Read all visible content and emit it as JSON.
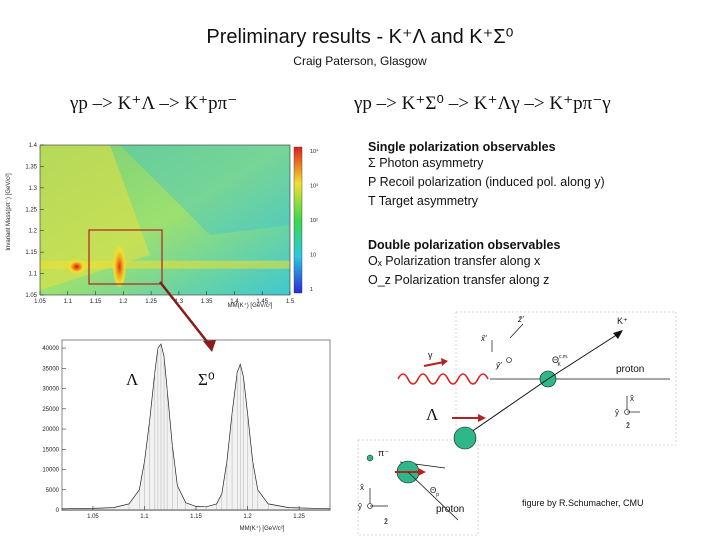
{
  "header": {
    "title": "Preliminary results - K⁺Λ and K⁺Σ⁰",
    "subtitle": "Craig Paterson, Glasgow"
  },
  "reactions": {
    "left": "γp –> K⁺Λ –> K⁺pπ⁻",
    "right": "γp –> K⁺Σ⁰ –> K⁺Λγ –> K⁺pπ⁻γ"
  },
  "single_polarization": {
    "title": "Single polarization observables",
    "items": [
      "Σ Photon asymmetry",
      "P Recoil polarization (induced pol. along y)",
      "T Target asymmetry"
    ]
  },
  "double_polarization": {
    "title": "Double polarization observables",
    "items": [
      "Oₓ Polarization transfer along x",
      "O_z Polarization transfer along z"
    ]
  },
  "diagram": {
    "labels": {
      "kplus": "K⁺",
      "lambda": "Λ",
      "piminus": "π⁻",
      "proton1": "proton",
      "proton2": "proton",
      "gamma": "γ",
      "theta_cm": "Θ",
      "theta_cm_sup": "c.m.",
      "theta_cm_sub": "K",
      "theta_p": "Θ",
      "theta_p_sub": "p",
      "xhat": "x̂",
      "yhat": "ŷ",
      "zhat": "ẑ",
      "xprime": "x̂′",
      "yprime": "ŷ′",
      "zprime": "ẑ′"
    },
    "credit": "figure by R.Schumacher, CMU"
  },
  "colors": {
    "arrow": "#8b1a1a",
    "box": "#b22222",
    "sphere": "#2eb88a",
    "wave": "#e02020"
  },
  "chart_data": [
    {
      "type": "heatmap",
      "title": "",
      "xlabel": "MM(K⁺) [GeV/c²]",
      "ylabel": "Invariant Mass(pπ⁻) [GeV/c²]",
      "x_ticks": [
        "1.05",
        "1.1",
        "1.15",
        "1.2",
        "1.25",
        "1.3",
        "1.35",
        "1.4",
        "1.45",
        "1.5"
      ],
      "y_ticks": [
        "1.05",
        "1.1",
        "1.15",
        "1.2",
        "1.25",
        "1.3",
        "1.35",
        "1.4"
      ],
      "xlim": [
        1.05,
        1.5
      ],
      "ylim": [
        1.05,
        1.4
      ],
      "log_z": true,
      "z_ticks": [
        "1",
        "10",
        "10²",
        "10³",
        "10⁴"
      ],
      "hotspots": [
        {
          "x": 1.116,
          "y": 1.116,
          "label": "Λ"
        },
        {
          "x": 1.193,
          "y": 1.116,
          "label": "Σ⁰"
        }
      ],
      "legend": "none"
    },
    {
      "type": "area",
      "title": "",
      "xlabel": "MM(K⁺) [GeV/c²]",
      "ylabel": "",
      "x_ticks": [
        "1.05",
        "1.1",
        "1.15",
        "1.2",
        "1.25"
      ],
      "y_ticks": [
        "0",
        "5000",
        "10000",
        "15000",
        "20000",
        "25000",
        "30000",
        "35000",
        "40000"
      ],
      "xlim": [
        1.02,
        1.28
      ],
      "ylim": [
        0,
        42000
      ],
      "peak_labels": [
        "Λ",
        "Σ⁰"
      ],
      "series": [
        {
          "x": [
            1.02,
            1.05,
            1.07,
            1.085,
            1.095,
            1.1,
            1.105,
            1.11,
            1.113,
            1.116,
            1.119,
            1.122,
            1.127,
            1.132,
            1.14,
            1.15,
            1.16,
            1.17,
            1.175,
            1.18,
            1.185,
            1.19,
            1.193,
            1.196,
            1.2,
            1.205,
            1.21,
            1.22,
            1.24,
            1.28
          ],
          "values": [
            300,
            400,
            600,
            1500,
            5000,
            12000,
            22000,
            34000,
            40000,
            41000,
            38000,
            30000,
            16000,
            6000,
            1800,
            900,
            800,
            1500,
            4000,
            12000,
            24000,
            34000,
            36000,
            33000,
            24000,
            12000,
            5000,
            1500,
            600,
            300
          ]
        }
      ],
      "legend": "none"
    }
  ]
}
